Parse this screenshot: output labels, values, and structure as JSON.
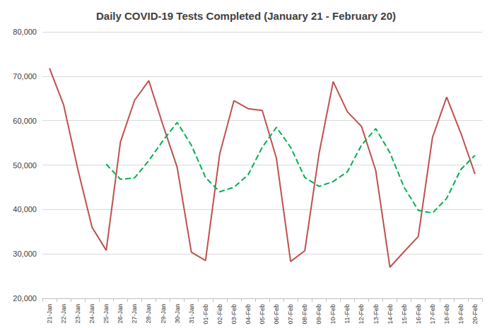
{
  "chart_data": {
    "type": "line",
    "title": "Daily COVID-19 Tests Completed (January 21 - February 20)",
    "categories": [
      "21-Jan",
      "22-Jan",
      "23-Jan",
      "24-Jan",
      "25-Jan",
      "26-Jan",
      "27-Jan",
      "28-Jan",
      "29-Jan",
      "30-Jan",
      "31-Jan",
      "01-Feb",
      "02-Feb",
      "03-Feb",
      "04-Feb",
      "05-Feb",
      "06-Feb",
      "07-Feb",
      "08-Feb",
      "09-Feb",
      "10-Feb",
      "11-Feb",
      "12-Feb",
      "13-Feb",
      "14-Feb",
      "15-Feb",
      "16-Feb",
      "17-Feb",
      "18-Feb",
      "19-Feb",
      "20-Feb"
    ],
    "series": [
      {
        "color": "#c0504d",
        "line_style": "solid",
        "values": [
          71800,
          63500,
          49000,
          36000,
          30800,
          55200,
          64600,
          69000,
          59000,
          49500,
          30400,
          28500,
          52500,
          64500,
          62700,
          62300,
          51500,
          28300,
          30700,
          52500,
          68800,
          62000,
          58700,
          48800,
          27000,
          30500,
          33900,
          56200,
          65300,
          57200,
          48000
        ]
      },
      {
        "color": "#00b050",
        "line_style": "dashed",
        "values": [
          null,
          null,
          null,
          null,
          50200,
          46800,
          47100,
          51000,
          55500,
          59600,
          54500,
          47200,
          44000,
          45000,
          47800,
          54000,
          58500,
          54000,
          47200,
          45200,
          46300,
          48500,
          54500,
          58200,
          52800,
          45000,
          39800,
          39200,
          42500,
          49000,
          52200
        ]
      }
    ],
    "ylim": [
      20000,
      80000
    ],
    "yticks": [
      {
        "value": 20000,
        "label": "20,000"
      },
      {
        "value": 30000,
        "label": "30,000"
      },
      {
        "value": 40000,
        "label": "40,000"
      },
      {
        "value": 50000,
        "label": "50,000"
      },
      {
        "value": 60000,
        "label": "60,000"
      },
      {
        "value": 70000,
        "label": "70,000"
      },
      {
        "value": 80000,
        "label": "80,000"
      }
    ],
    "grid": true
  }
}
